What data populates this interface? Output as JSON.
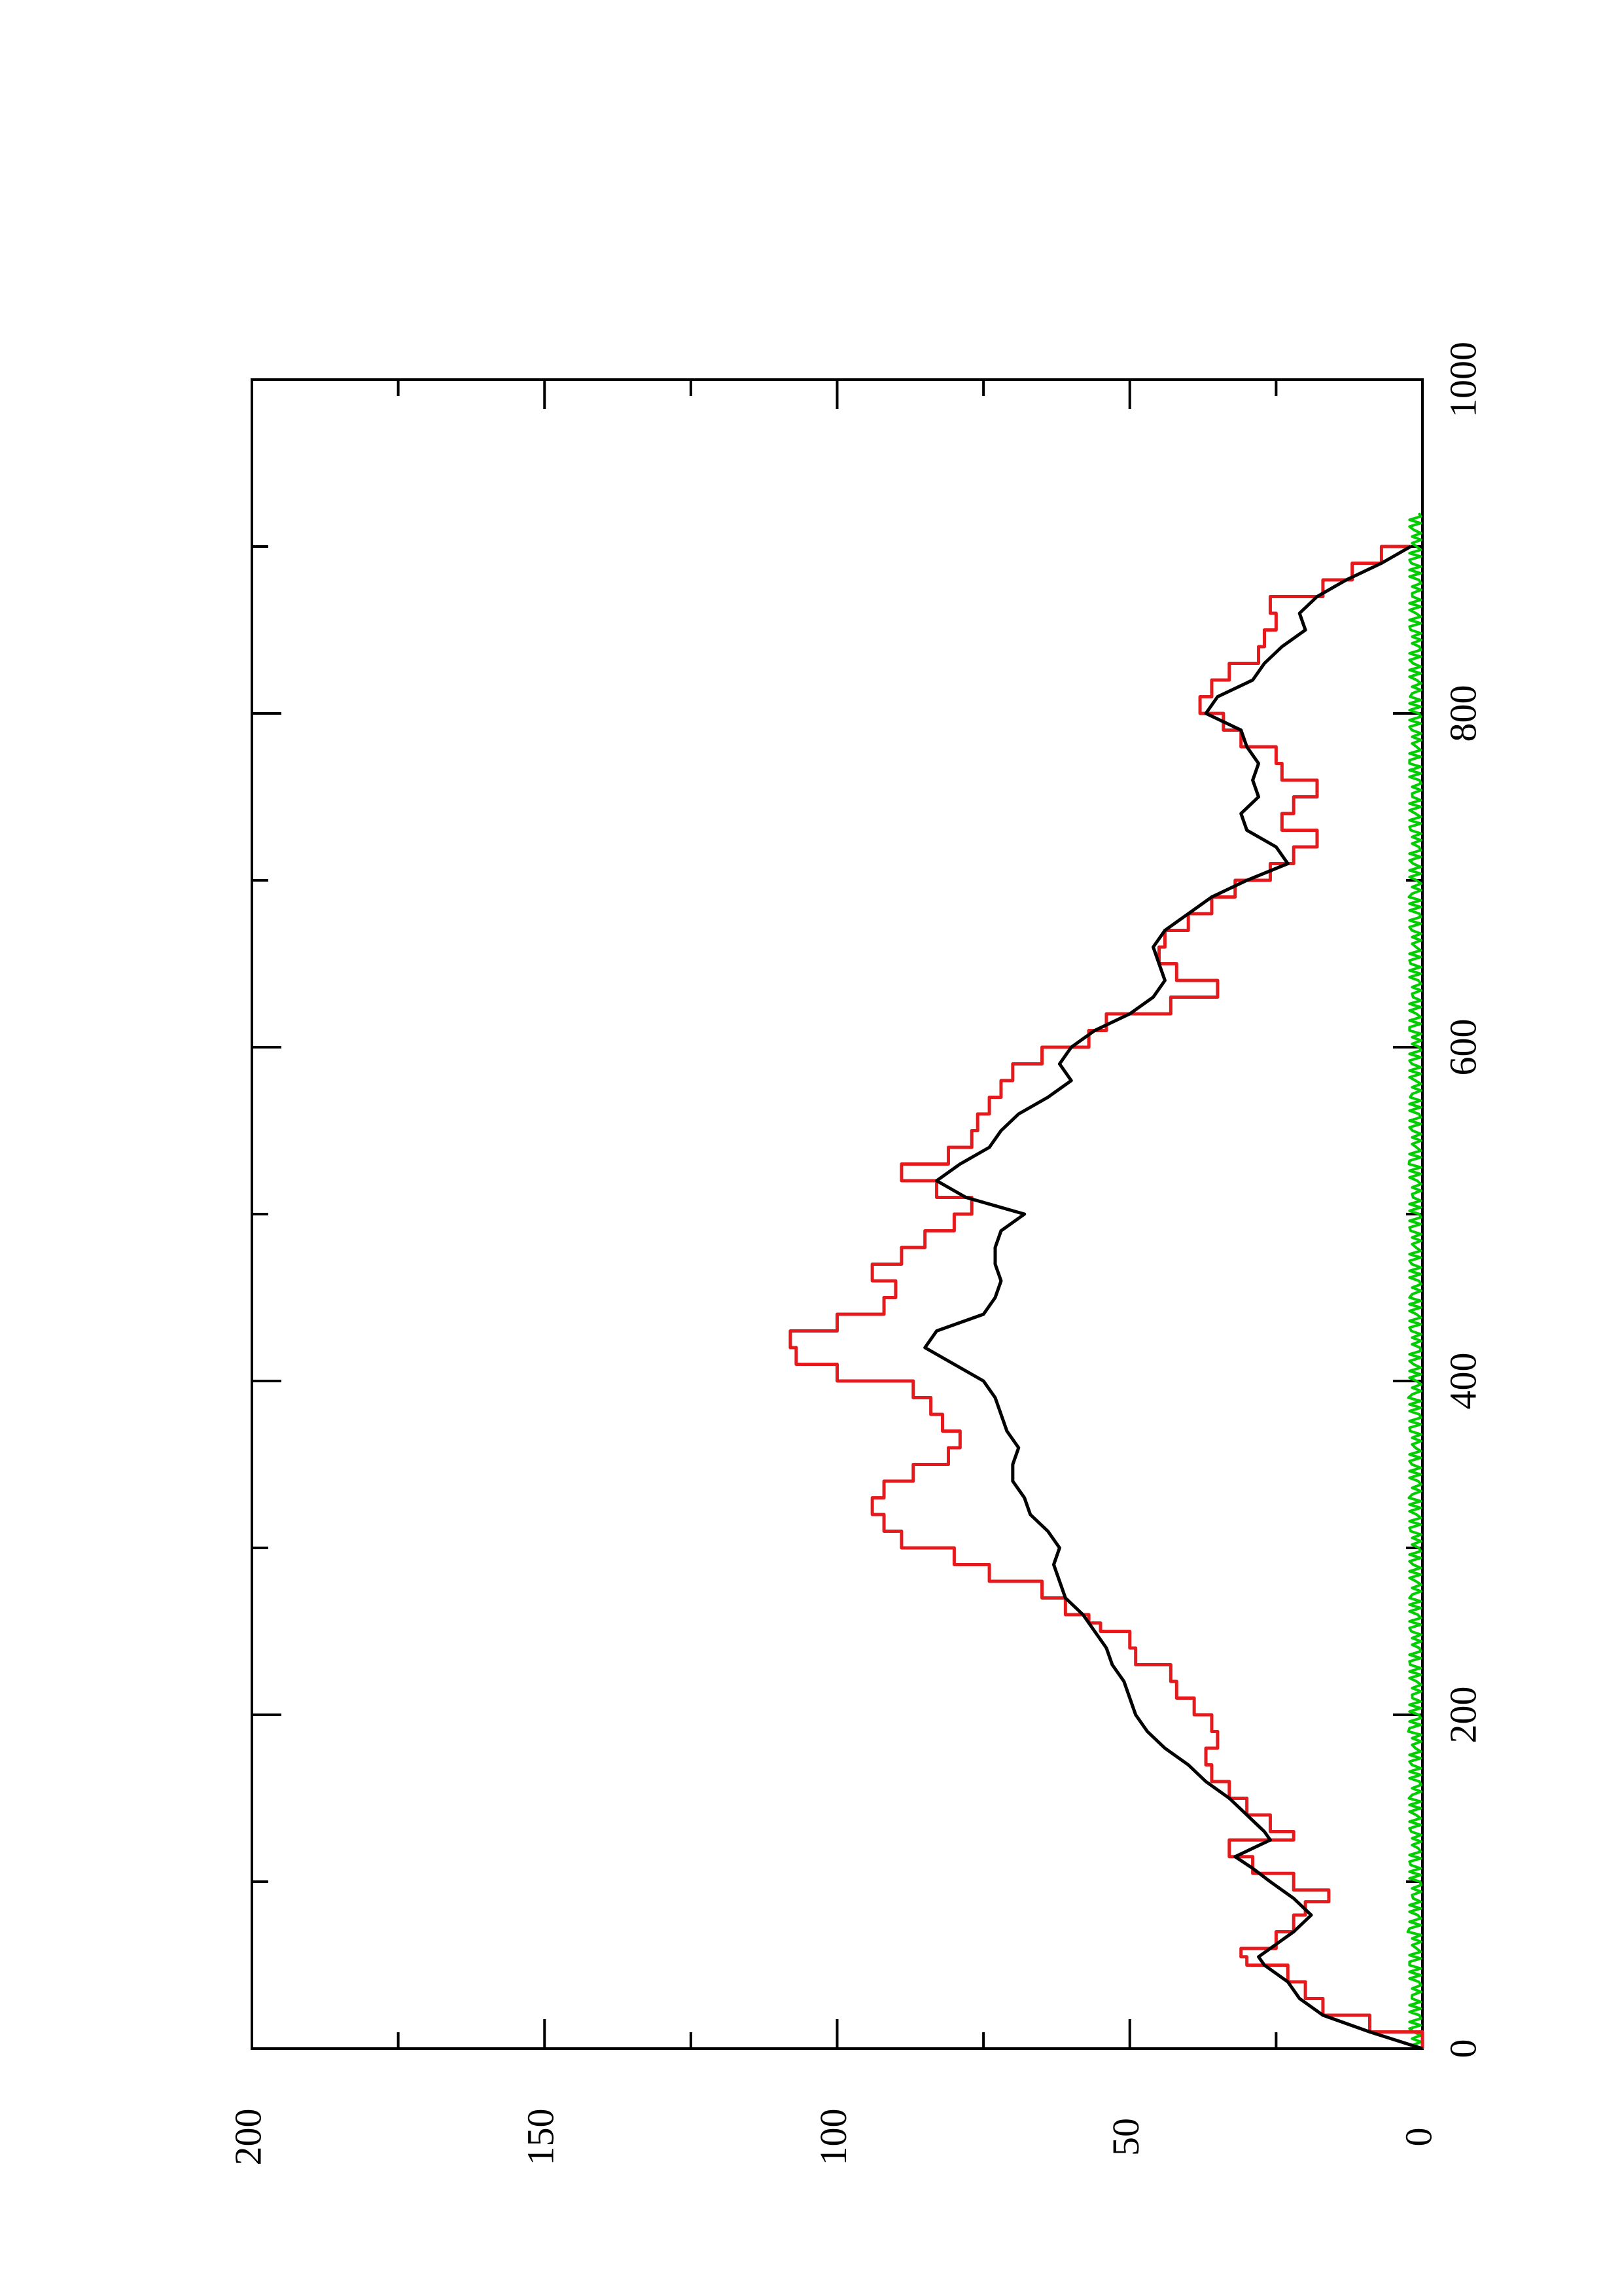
{
  "chart_data": {
    "type": "line",
    "orientation": "rotated-90-ccw",
    "title": "",
    "xlabel": "",
    "ylabel": "",
    "xlim": [
      0,
      1000
    ],
    "ylim": [
      0,
      200
    ],
    "x_ticks": [
      "0",
      "200",
      "400",
      "600",
      "800",
      "1000"
    ],
    "x_minor_ticks": [
      100,
      300,
      500,
      700,
      900
    ],
    "y_ticks": [
      "0",
      "50",
      "100",
      "150",
      "200"
    ],
    "y_minor_ticks": [
      25,
      75,
      125,
      175
    ],
    "grid": false,
    "legend": "none",
    "series": [
      {
        "color": "#e41a1c",
        "style": "step",
        "points": [
          [
            0,
            0
          ],
          [
            10,
            9
          ],
          [
            20,
            17
          ],
          [
            30,
            20
          ],
          [
            40,
            23
          ],
          [
            50,
            30
          ],
          [
            55,
            31
          ],
          [
            60,
            25
          ],
          [
            70,
            22
          ],
          [
            80,
            20
          ],
          [
            88,
            16
          ],
          [
            95,
            22
          ],
          [
            105,
            29
          ],
          [
            115,
            33
          ],
          [
            125,
            22
          ],
          [
            130,
            26
          ],
          [
            140,
            30
          ],
          [
            150,
            33
          ],
          [
            160,
            36
          ],
          [
            170,
            37
          ],
          [
            180,
            35
          ],
          [
            190,
            36
          ],
          [
            200,
            39
          ],
          [
            210,
            42
          ],
          [
            220,
            43
          ],
          [
            230,
            49
          ],
          [
            240,
            50
          ],
          [
            250,
            55
          ],
          [
            255,
            57
          ],
          [
            260,
            61
          ],
          [
            270,
            65
          ],
          [
            280,
            74
          ],
          [
            290,
            80
          ],
          [
            300,
            89
          ],
          [
            310,
            92
          ],
          [
            320,
            94
          ],
          [
            330,
            92
          ],
          [
            340,
            87
          ],
          [
            350,
            81
          ],
          [
            360,
            79
          ],
          [
            370,
            82
          ],
          [
            380,
            84
          ],
          [
            390,
            87
          ],
          [
            400,
            100
          ],
          [
            410,
            107
          ],
          [
            420,
            108
          ],
          [
            430,
            100
          ],
          [
            440,
            92
          ],
          [
            450,
            90
          ],
          [
            460,
            94
          ],
          [
            470,
            89
          ],
          [
            480,
            85
          ],
          [
            490,
            80
          ],
          [
            500,
            77
          ],
          [
            510,
            83
          ],
          [
            520,
            89
          ],
          [
            530,
            81
          ],
          [
            540,
            77
          ],
          [
            550,
            76
          ],
          [
            560,
            74
          ],
          [
            570,
            72
          ],
          [
            580,
            70
          ],
          [
            590,
            65
          ],
          [
            600,
            57
          ],
          [
            610,
            54
          ],
          [
            620,
            43
          ],
          [
            630,
            35
          ],
          [
            640,
            42
          ],
          [
            650,
            45
          ],
          [
            660,
            44
          ],
          [
            670,
            40
          ],
          [
            680,
            36
          ],
          [
            690,
            32
          ],
          [
            700,
            26
          ],
          [
            710,
            22
          ],
          [
            720,
            18
          ],
          [
            730,
            24
          ],
          [
            740,
            22
          ],
          [
            750,
            18
          ],
          [
            760,
            24
          ],
          [
            770,
            25
          ],
          [
            780,
            31
          ],
          [
            790,
            34
          ],
          [
            800,
            38
          ],
          [
            810,
            36
          ],
          [
            820,
            33
          ],
          [
            830,
            28
          ],
          [
            840,
            27
          ],
          [
            850,
            25
          ],
          [
            860,
            26
          ],
          [
            870,
            17
          ],
          [
            880,
            12
          ],
          [
            890,
            7
          ],
          [
            900,
            2
          ]
        ]
      },
      {
        "color": "#000000",
        "style": "smooth",
        "points": [
          [
            0,
            0
          ],
          [
            10,
            9
          ],
          [
            20,
            17
          ],
          [
            30,
            21
          ],
          [
            40,
            23
          ],
          [
            50,
            27
          ],
          [
            55,
            28
          ],
          [
            60,
            26
          ],
          [
            70,
            22
          ],
          [
            80,
            19
          ],
          [
            90,
            22
          ],
          [
            100,
            26
          ],
          [
            108,
            29
          ],
          [
            115,
            32
          ],
          [
            125,
            26
          ],
          [
            130,
            27
          ],
          [
            140,
            30
          ],
          [
            150,
            33
          ],
          [
            160,
            37
          ],
          [
            170,
            40
          ],
          [
            180,
            44
          ],
          [
            190,
            47
          ],
          [
            200,
            49
          ],
          [
            210,
            50
          ],
          [
            220,
            51
          ],
          [
            230,
            53
          ],
          [
            240,
            54
          ],
          [
            250,
            56
          ],
          [
            260,
            58
          ],
          [
            270,
            61
          ],
          [
            280,
            62
          ],
          [
            290,
            63
          ],
          [
            300,
            62
          ],
          [
            310,
            64
          ],
          [
            320,
            67
          ],
          [
            330,
            68
          ],
          [
            340,
            70
          ],
          [
            350,
            70
          ],
          [
            360,
            69
          ],
          [
            370,
            71
          ],
          [
            380,
            72
          ],
          [
            390,
            73
          ],
          [
            400,
            75
          ],
          [
            410,
            80
          ],
          [
            420,
            85
          ],
          [
            430,
            83
          ],
          [
            440,
            75
          ],
          [
            450,
            73
          ],
          [
            460,
            72
          ],
          [
            470,
            73
          ],
          [
            480,
            73
          ],
          [
            490,
            72
          ],
          [
            500,
            68
          ],
          [
            510,
            78
          ],
          [
            520,
            83
          ],
          [
            530,
            79
          ],
          [
            540,
            74
          ],
          [
            550,
            72
          ],
          [
            560,
            69
          ],
          [
            570,
            64
          ],
          [
            580,
            60
          ],
          [
            590,
            62
          ],
          [
            600,
            60
          ],
          [
            610,
            56
          ],
          [
            620,
            50
          ],
          [
            630,
            46
          ],
          [
            640,
            44
          ],
          [
            650,
            45
          ],
          [
            660,
            46
          ],
          [
            670,
            44
          ],
          [
            680,
            40
          ],
          [
            690,
            36
          ],
          [
            700,
            30
          ],
          [
            710,
            23
          ],
          [
            720,
            25
          ],
          [
            730,
            30
          ],
          [
            740,
            31
          ],
          [
            750,
            28
          ],
          [
            760,
            29
          ],
          [
            770,
            28
          ],
          [
            780,
            30
          ],
          [
            790,
            31
          ],
          [
            800,
            37
          ],
          [
            810,
            35
          ],
          [
            820,
            29
          ],
          [
            830,
            27
          ],
          [
            840,
            24
          ],
          [
            850,
            20
          ],
          [
            860,
            21
          ],
          [
            870,
            18
          ],
          [
            880,
            13
          ],
          [
            890,
            7
          ],
          [
            900,
            2
          ]
        ]
      },
      {
        "color": "#00cc00",
        "style": "noise",
        "points": [
          [
            0,
            0
          ],
          [
            10,
            1.5
          ],
          [
            20,
            0.5
          ],
          [
            30,
            1.8
          ],
          [
            40,
            0.6
          ],
          [
            50,
            2.2
          ],
          [
            60,
            1.0
          ],
          [
            70,
            2.5
          ],
          [
            80,
            0.8
          ],
          [
            90,
            1.6
          ],
          [
            100,
            0.4
          ],
          [
            110,
            2.0
          ],
          [
            120,
            0.7
          ],
          [
            130,
            1.9
          ],
          [
            140,
            1.1
          ],
          [
            150,
            2.3
          ],
          [
            160,
            0.5
          ],
          [
            170,
            1.8
          ],
          [
            180,
            1.2
          ],
          [
            190,
            2.4
          ],
          [
            200,
            0.6
          ],
          [
            210,
            1.7
          ],
          [
            220,
            1.0
          ],
          [
            230,
            2.1
          ],
          [
            240,
            0.5
          ],
          [
            250,
            1.9
          ],
          [
            260,
            0.8
          ],
          [
            270,
            2.2
          ],
          [
            280,
            1.1
          ],
          [
            290,
            1.6
          ],
          [
            300,
            0.6
          ],
          [
            310,
            2.0
          ],
          [
            320,
            1.0
          ],
          [
            330,
            2.3
          ],
          [
            340,
            0.7
          ],
          [
            350,
            1.8
          ],
          [
            360,
            1.2
          ],
          [
            370,
            2.1
          ],
          [
            380,
            0.5
          ],
          [
            390,
            2.4
          ],
          [
            400,
            1.0
          ],
          [
            410,
            1.5
          ],
          [
            420,
            0.4
          ],
          [
            430,
            1.9
          ],
          [
            440,
            1.0
          ],
          [
            450,
            2.2
          ],
          [
            460,
            0.6
          ],
          [
            470,
            1.8
          ],
          [
            480,
            1.1
          ],
          [
            490,
            2.0
          ],
          [
            500,
            0.5
          ],
          [
            510,
            1.6
          ],
          [
            520,
            0.9
          ],
          [
            530,
            2.3
          ],
          [
            540,
            1.0
          ],
          [
            550,
            1.7
          ],
          [
            560,
            0.6
          ],
          [
            570,
            2.1
          ],
          [
            580,
            1.2
          ],
          [
            590,
            1.8
          ],
          [
            600,
            0.5
          ],
          [
            610,
            2.2
          ],
          [
            620,
            1.0
          ],
          [
            630,
            1.6
          ],
          [
            640,
            0.7
          ],
          [
            650,
            2.0
          ],
          [
            660,
            1.1
          ],
          [
            670,
            1.8
          ],
          [
            680,
            0.5
          ],
          [
            690,
            2.3
          ],
          [
            700,
            1.0
          ],
          [
            710,
            1.6
          ],
          [
            720,
            0.6
          ],
          [
            730,
            2.0
          ],
          [
            740,
            1.2
          ],
          [
            750,
            1.7
          ],
          [
            760,
            0.5
          ],
          [
            770,
            2.2
          ],
          [
            780,
            1.0
          ],
          [
            790,
            1.8
          ],
          [
            800,
            0.6
          ],
          [
            810,
            2.1
          ],
          [
            820,
            1.0
          ],
          [
            830,
            1.6
          ],
          [
            840,
            0.5
          ],
          [
            850,
            2.0
          ],
          [
            860,
            1.1
          ],
          [
            870,
            1.7
          ],
          [
            880,
            0.6
          ],
          [
            890,
            1.9
          ],
          [
            900,
            1.0
          ],
          [
            910,
            1.5
          ],
          [
            920,
            0.6
          ]
        ]
      }
    ]
  }
}
